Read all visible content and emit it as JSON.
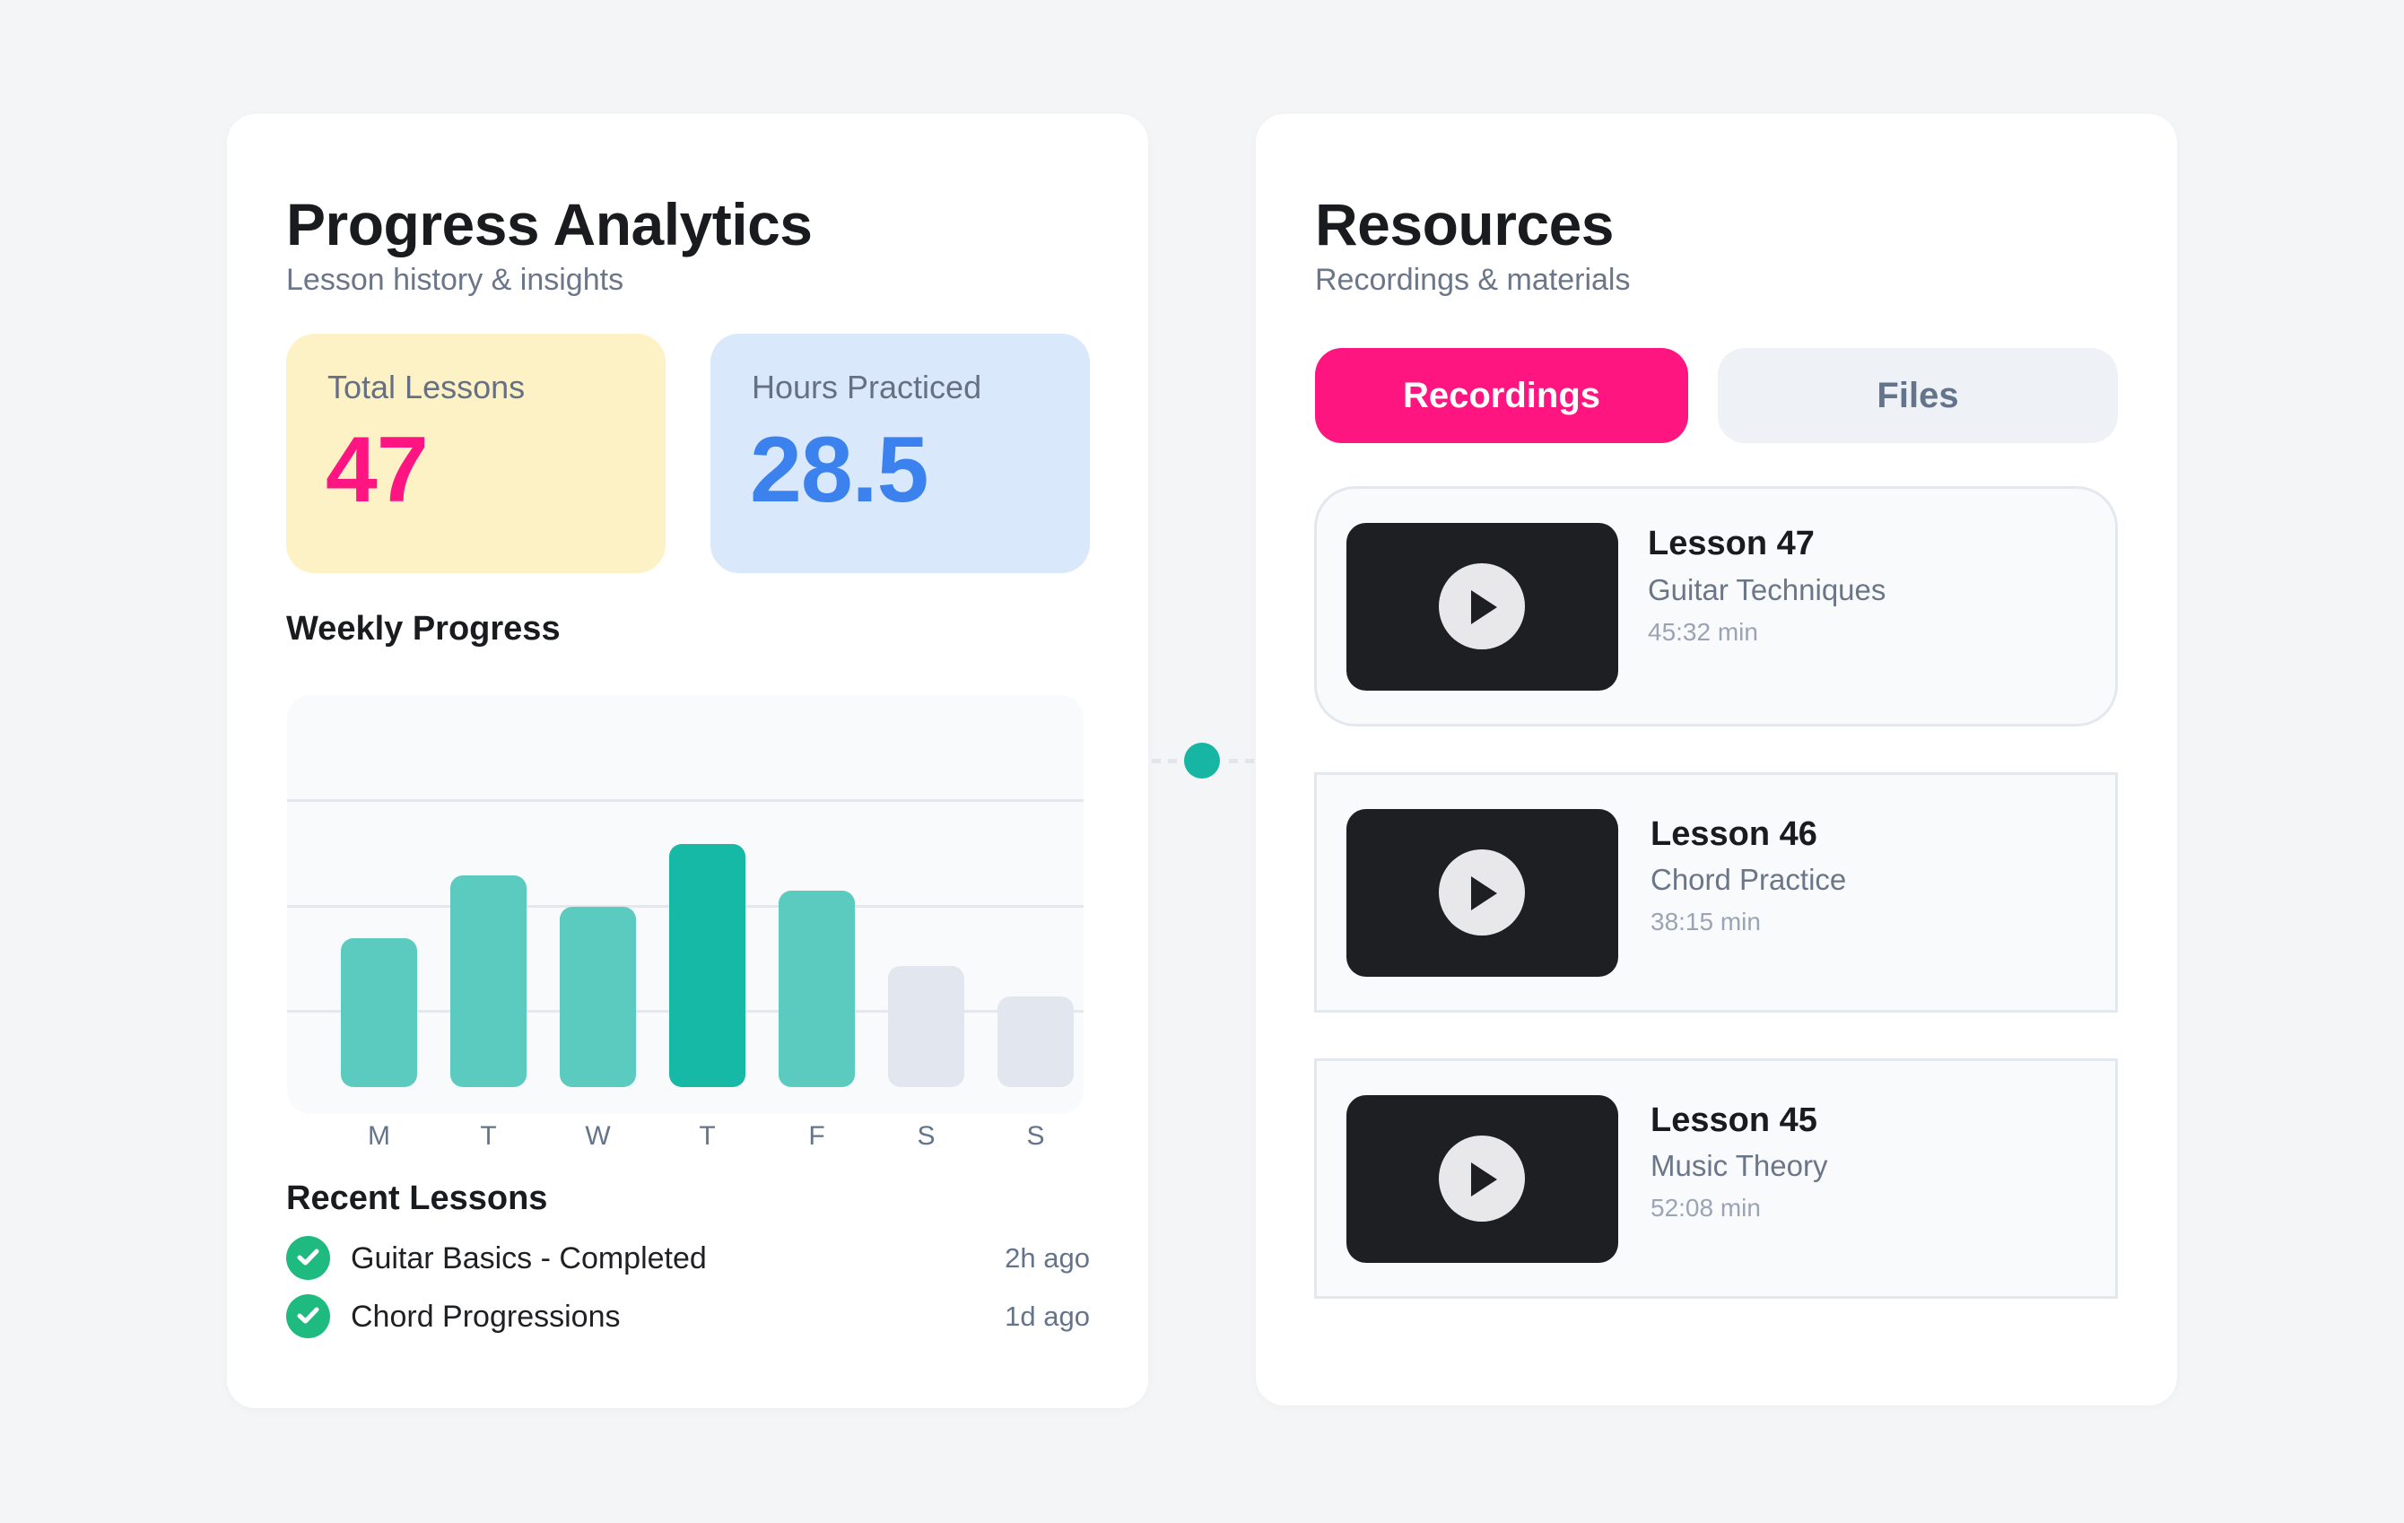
{
  "progress": {
    "title": "Progress Analytics",
    "subtitle": "Lesson history & insights",
    "stats": [
      {
        "label": "Total Lessons",
        "value": "47",
        "color": "#fe1581",
        "bg": "#fdf2c6"
      },
      {
        "label": "Hours Practiced",
        "value": "28.5",
        "color": "#3b82ef",
        "bg": "#dae8fc"
      }
    ],
    "weekly_heading": "Weekly Progress",
    "recent_heading": "Recent Lessons",
    "recent": [
      {
        "name": "Guitar Basics - Completed",
        "time": "2h ago",
        "icon": "check-circle-icon"
      },
      {
        "name": "Chord Progressions",
        "time": "1d ago",
        "icon": "check-circle-icon"
      }
    ]
  },
  "chart_data": {
    "type": "bar",
    "title": "Weekly Progress",
    "categories": [
      "M",
      "T",
      "W",
      "T",
      "F",
      "S",
      "S"
    ],
    "values": [
      38,
      54,
      46,
      62,
      50,
      31,
      23
    ],
    "unit": "percent of chart height (no axis values shown)",
    "highlight_index": 3,
    "colors": {
      "normal": "#5bcbbf",
      "highlight": "#16b8a6",
      "weekend": "#e2e6ee"
    },
    "gridlines": 3,
    "xlabel": "",
    "ylabel": "",
    "ylim": [
      0,
      100
    ],
    "legend": false
  },
  "connector": {
    "dot_color": "#16b5a4"
  },
  "resources": {
    "title": "Resources",
    "subtitle": "Recordings & materials",
    "tabs": [
      {
        "label": "Recordings",
        "active": true
      },
      {
        "label": "Files",
        "active": false
      }
    ],
    "items": [
      {
        "title": "Lesson 47",
        "subtitle": "Guitar Techniques",
        "duration": "45:32 min"
      },
      {
        "title": "Lesson 46",
        "subtitle": "Chord Practice",
        "duration": "38:15 min"
      },
      {
        "title": "Lesson 45",
        "subtitle": "Music Theory",
        "duration": "52:08 min"
      }
    ]
  }
}
